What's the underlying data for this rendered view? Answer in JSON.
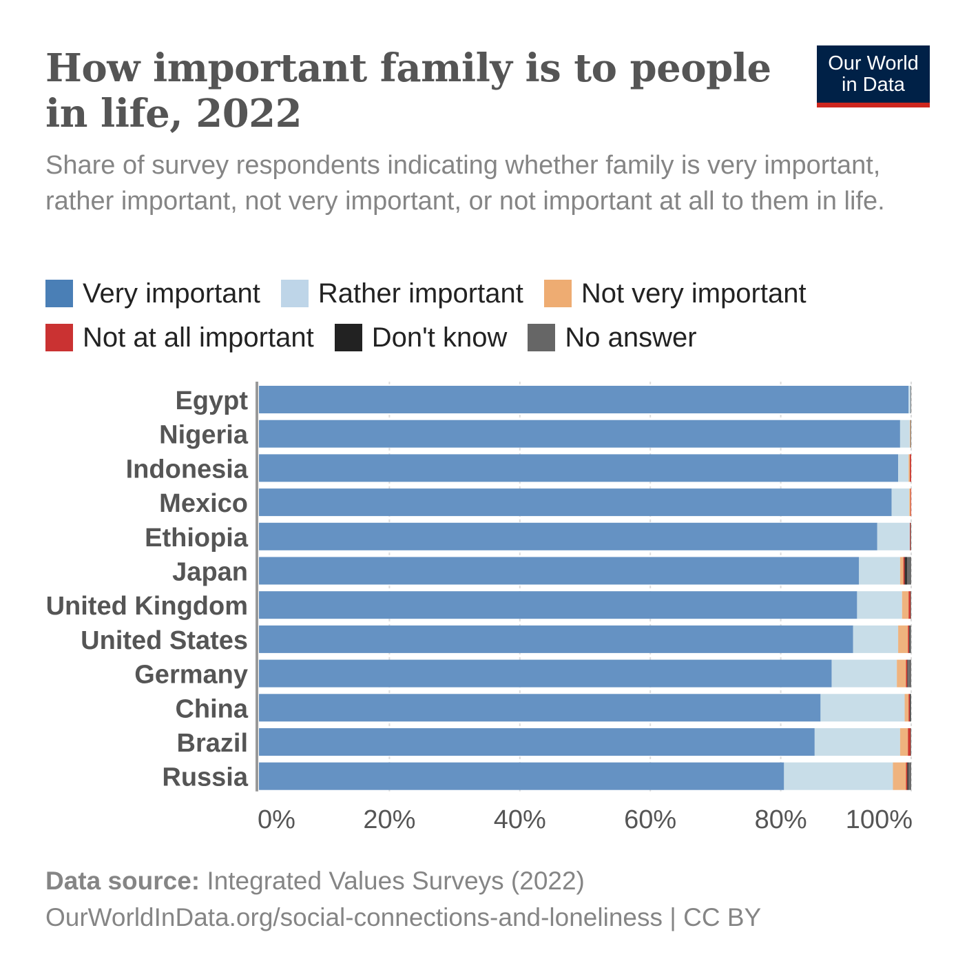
{
  "header": {
    "title": "How important family is to people in life, 2022",
    "subtitle": "Share of survey respondents indicating whether family is very important, rather important, not very important, or not important at all to them in life.",
    "logo_line1": "Our World",
    "logo_line2": "in Data"
  },
  "footer": {
    "source_label": "Data source:",
    "source_text": "Integrated Values Surveys (2022)",
    "url_line": "OurWorldInData.org/social-connections-and-loneliness | CC BY"
  },
  "chart_data": {
    "type": "bar",
    "orientation": "horizontal",
    "stacked": true,
    "title": "How important family is to people in life, 2022",
    "subtitle": "Share of survey respondents indicating whether family is very important, rather important, not very important, or not important at all to them in life.",
    "categories": [
      "Egypt",
      "Nigeria",
      "Indonesia",
      "Mexico",
      "Ethiopia",
      "Japan",
      "United Kingdom",
      "United States",
      "Germany",
      "China",
      "Brazil",
      "Russia"
    ],
    "xlim": [
      0,
      100
    ],
    "x_ticks": [
      "0%",
      "20%",
      "40%",
      "60%",
      "80%",
      "100%"
    ],
    "x_tick_values": [
      0,
      20,
      40,
      60,
      80,
      100
    ],
    "grid": true,
    "legend_position": "top",
    "series": [
      {
        "name": "Very important",
        "color": "#6592c3",
        "legend_color": "#4a7fb6",
        "values": [
          99.6,
          98.3,
          98.0,
          97.0,
          94.8,
          92.0,
          91.7,
          91.1,
          87.8,
          86.1,
          85.2,
          80.5
        ]
      },
      {
        "name": "Rather important",
        "color": "#c8dde8",
        "legend_color": "#bed5e8",
        "values": [
          0.3,
          1.5,
          1.6,
          2.7,
          5.0,
          6.3,
          6.9,
          6.9,
          10.0,
          12.9,
          13.1,
          16.7
        ]
      },
      {
        "name": "Not very important",
        "color": "#efb37e",
        "legend_color": "#eeac72",
        "values": [
          0.0,
          0.1,
          0.2,
          0.2,
          0.0,
          0.5,
          1.0,
          1.5,
          1.4,
          0.6,
          1.2,
          2.0
        ]
      },
      {
        "name": "Not at all important",
        "color": "#cc3a30",
        "legend_color": "#ca3232",
        "values": [
          0.0,
          0.0,
          0.2,
          0.1,
          0.1,
          0.2,
          0.3,
          0.2,
          0.2,
          0.2,
          0.4,
          0.2
        ]
      },
      {
        "name": "Don't know",
        "color": "#333333",
        "legend_color": "#222222",
        "values": [
          0.0,
          0.0,
          0.0,
          0.0,
          0.0,
          0.4,
          0.0,
          0.1,
          0.1,
          0.1,
          0.0,
          0.2
        ]
      },
      {
        "name": "No answer",
        "color": "#6c6c6c",
        "legend_color": "#666666",
        "values": [
          0.1,
          0.1,
          0.0,
          0.0,
          0.1,
          0.6,
          0.1,
          0.2,
          0.5,
          0.1,
          0.1,
          0.4
        ]
      }
    ]
  }
}
